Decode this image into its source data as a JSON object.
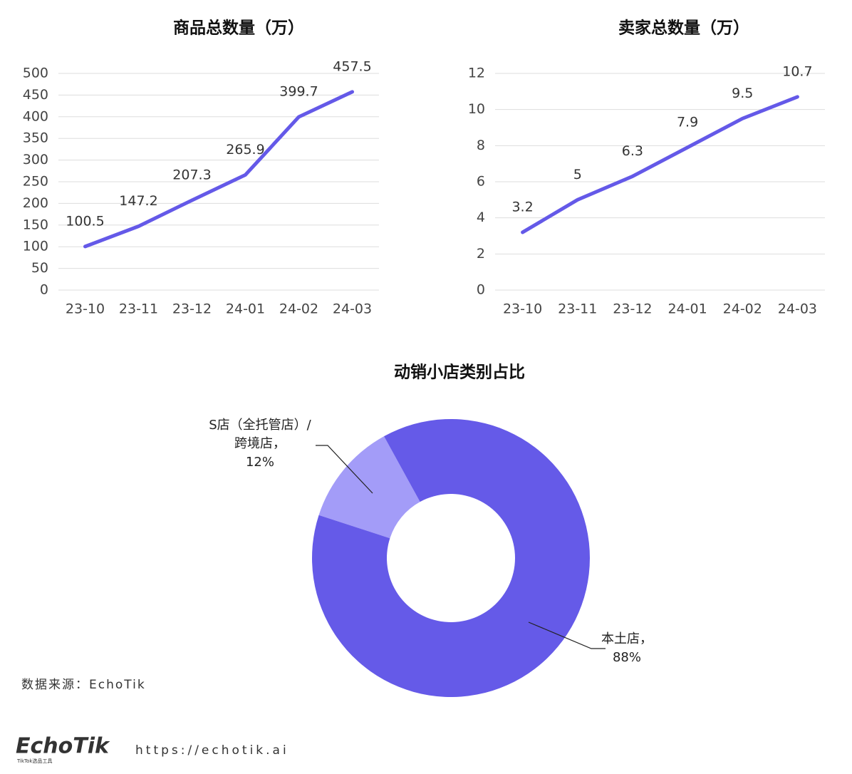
{
  "chart_data": [
    {
      "type": "line",
      "title": "商品总数量（万）",
      "categories": [
        "23-10",
        "23-11",
        "23-12",
        "24-01",
        "24-02",
        "24-03"
      ],
      "values": [
        100.5,
        147.2,
        207.3,
        265.9,
        399.7,
        457.5
      ],
      "color": "#6459e8",
      "ylim": [
        0,
        500
      ],
      "yticks": [
        0,
        50,
        100,
        150,
        200,
        250,
        300,
        350,
        400,
        450,
        500
      ],
      "grid": true
    },
    {
      "type": "line",
      "title": "卖家总数量（万）",
      "categories": [
        "23-10",
        "23-11",
        "23-12",
        "24-01",
        "24-02",
        "24-03"
      ],
      "values": [
        3.2,
        5,
        6.3,
        7.9,
        9.5,
        10.7
      ],
      "color": "#6459e8",
      "ylim": [
        0,
        12
      ],
      "yticks": [
        0,
        2,
        4,
        6,
        8,
        10,
        12
      ],
      "grid": true
    },
    {
      "type": "donut",
      "title": "动销小店类别占比",
      "categories": [
        "S店（全托管店）/跨境店，",
        "本土店，"
      ],
      "values": [
        12,
        88
      ],
      "value_labels": [
        "12%",
        "88%"
      ],
      "colors": [
        "#a39cf8",
        "#655ae8"
      ]
    }
  ],
  "source": "数据来源：EchoTik",
  "footer": {
    "logo": "EchoTik",
    "tagline": "TikTok选品工具",
    "url": "https://echotik.ai"
  }
}
